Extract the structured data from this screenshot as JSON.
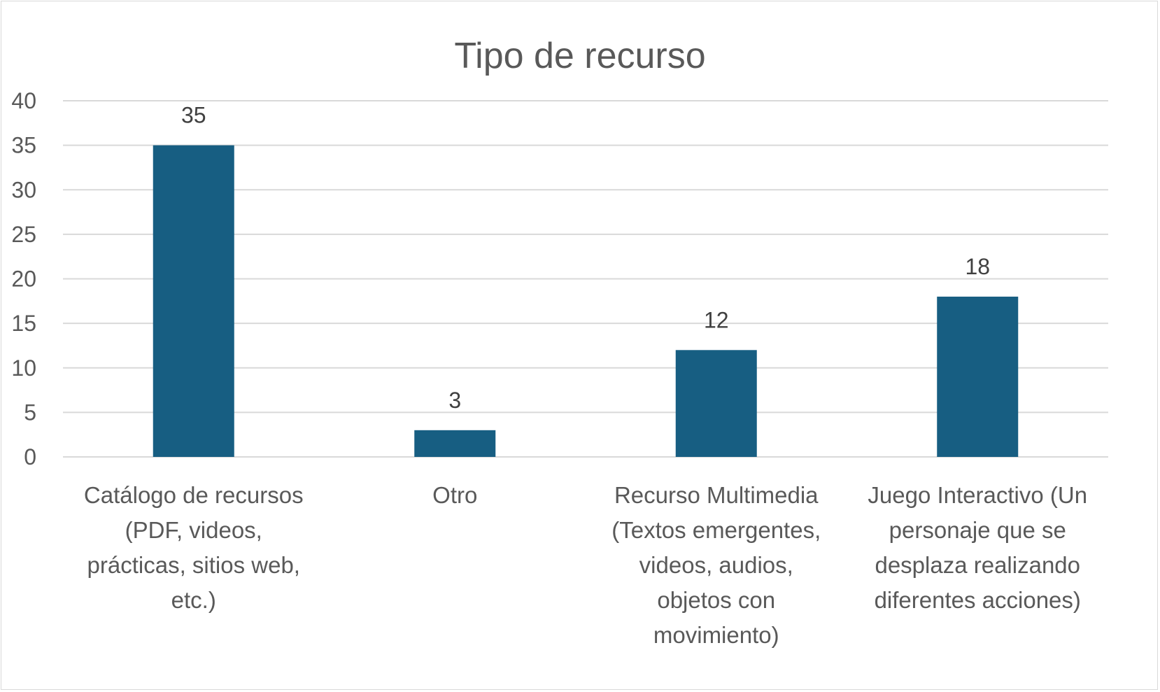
{
  "chart_data": {
    "type": "bar",
    "title": "Tipo de recurso",
    "xlabel": "",
    "ylabel": "",
    "ylim": [
      0,
      40
    ],
    "y_ticks": [
      0,
      5,
      10,
      15,
      20,
      25,
      30,
      35,
      40
    ],
    "grid": true,
    "legend": "none",
    "data_labels": true,
    "bar_color": "#175e82",
    "categories": [
      "Catálogo de recursos (PDF, videos, prácticas, sitios web, etc.)",
      "Otro",
      "Recurso Multimedia (Textos emergentes, videos, audios, objetos con movimiento)",
      "Juego Interactivo (Un personaje que se desplaza realizando diferentes acciones)"
    ],
    "category_lines": [
      [
        "Catálogo de recursos",
        "(PDF, videos,",
        "prácticas, sitios web,",
        "etc.)"
      ],
      [
        "Otro"
      ],
      [
        "Recurso Multimedia",
        "(Textos emergentes,",
        "videos, audios,",
        "objetos con",
        "movimiento)"
      ],
      [
        "Juego Interactivo (Un",
        "personaje que se",
        "desplaza realizando",
        "diferentes acciones)"
      ]
    ],
    "values": [
      35,
      3,
      12,
      18
    ]
  }
}
